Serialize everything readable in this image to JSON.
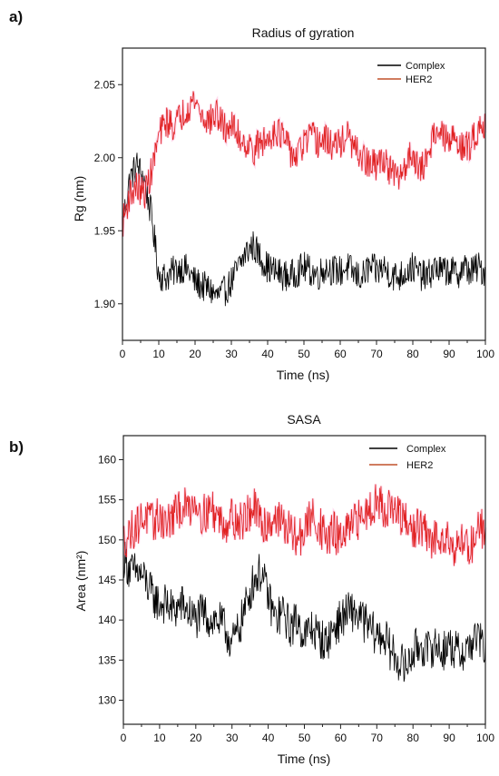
{
  "chart_data": [
    {
      "panel_label": "a)",
      "type": "line",
      "title": "Radius of gyration",
      "xlabel": "Time (ns)",
      "ylabel": "Rg (nm)",
      "xlim": [
        0,
        100
      ],
      "ylim": [
        1.875,
        2.075
      ],
      "xticks": [
        0,
        10,
        20,
        30,
        40,
        50,
        60,
        70,
        80,
        90,
        100
      ],
      "yticks": [
        1.9,
        1.95,
        2.0,
        2.05
      ],
      "ytick_labels": [
        "1.90",
        "1.95",
        "2.00",
        "2.05"
      ],
      "legend_position": "top-right",
      "grid": false,
      "series": [
        {
          "name": "Complex",
          "color": "#000000",
          "x": [
            0,
            2,
            4,
            6,
            8,
            10,
            12,
            14,
            16,
            18,
            20,
            22,
            24,
            26,
            28,
            30,
            32,
            34,
            36,
            38,
            40,
            42,
            44,
            46,
            48,
            50,
            52,
            54,
            56,
            58,
            60,
            62,
            64,
            66,
            68,
            70,
            72,
            74,
            76,
            78,
            80,
            82,
            84,
            86,
            88,
            90,
            92,
            94,
            96,
            98,
            100
          ],
          "y": [
            1.955,
            1.985,
            1.995,
            1.985,
            1.96,
            1.92,
            1.918,
            1.922,
            1.925,
            1.923,
            1.915,
            1.912,
            1.91,
            1.905,
            1.908,
            1.915,
            1.925,
            1.935,
            1.94,
            1.932,
            1.925,
            1.922,
            1.92,
            1.918,
            1.922,
            1.925,
            1.922,
            1.92,
            1.925,
            1.923,
            1.922,
            1.925,
            1.92,
            1.918,
            1.925,
            1.922,
            1.925,
            1.92,
            1.918,
            1.922,
            1.925,
            1.92,
            1.918,
            1.925,
            1.922,
            1.923,
            1.92,
            1.925,
            1.922,
            1.925,
            1.922
          ]
        },
        {
          "name": "HER2",
          "color": "#e02020",
          "x": [
            0,
            2,
            4,
            6,
            8,
            10,
            12,
            14,
            16,
            18,
            20,
            22,
            24,
            26,
            28,
            30,
            32,
            34,
            36,
            38,
            40,
            42,
            44,
            46,
            48,
            50,
            52,
            54,
            56,
            58,
            60,
            62,
            64,
            66,
            68,
            70,
            72,
            74,
            76,
            78,
            80,
            82,
            84,
            86,
            88,
            90,
            92,
            94,
            96,
            98,
            100
          ],
          "y": [
            1.955,
            1.975,
            1.98,
            1.975,
            1.99,
            2.015,
            2.025,
            2.022,
            2.028,
            2.035,
            2.04,
            2.028,
            2.025,
            2.03,
            2.02,
            2.022,
            2.015,
            2.01,
            2.005,
            2.01,
            2.012,
            2.02,
            2.015,
            2.005,
            2.0,
            2.01,
            2.015,
            2.01,
            2.012,
            2.008,
            2.01,
            2.015,
            2.005,
            2.0,
            1.995,
            1.995,
            2.0,
            1.99,
            1.985,
            1.995,
            2.005,
            1.99,
            2.0,
            2.02,
            2.015,
            2.01,
            2.015,
            2.005,
            2.01,
            2.02,
            2.025
          ]
        }
      ]
    },
    {
      "panel_label": "b)",
      "type": "line",
      "title": "SASA",
      "xlabel": "Time (ns)",
      "ylabel": "Area (nm²)",
      "xlim": [
        0,
        100
      ],
      "ylim": [
        127,
        163
      ],
      "xticks": [
        0,
        10,
        20,
        30,
        40,
        50,
        60,
        70,
        80,
        90,
        100
      ],
      "yticks": [
        130,
        135,
        140,
        145,
        150,
        155,
        160
      ],
      "ytick_labels": [
        "130",
        "135",
        "140",
        "145",
        "150",
        "155",
        "160"
      ],
      "legend_position": "top-right",
      "grid": false,
      "series": [
        {
          "name": "Complex",
          "color": "#000000",
          "x": [
            0,
            2,
            4,
            6,
            8,
            10,
            12,
            14,
            16,
            18,
            20,
            22,
            24,
            26,
            28,
            30,
            32,
            34,
            36,
            38,
            40,
            42,
            44,
            46,
            48,
            50,
            52,
            54,
            56,
            58,
            60,
            62,
            64,
            66,
            68,
            70,
            72,
            74,
            76,
            78,
            80,
            82,
            84,
            86,
            88,
            90,
            92,
            94,
            96,
            98,
            100
          ],
          "y": [
            148,
            146,
            146,
            145,
            143,
            142,
            142,
            141,
            142,
            141,
            140,
            141,
            140,
            140,
            139,
            137,
            139,
            142,
            145,
            146,
            143,
            140,
            141,
            139,
            140,
            138,
            139,
            138,
            137,
            139,
            140,
            141,
            141,
            140,
            139,
            138,
            138,
            136,
            135,
            134,
            136,
            137,
            136,
            137,
            136,
            137,
            136,
            136,
            137,
            138,
            136
          ]
        },
        {
          "name": "HER2",
          "color": "#e02020",
          "x": [
            0,
            2,
            4,
            6,
            8,
            10,
            12,
            14,
            16,
            18,
            20,
            22,
            24,
            26,
            28,
            30,
            32,
            34,
            36,
            38,
            40,
            42,
            44,
            46,
            48,
            50,
            52,
            54,
            56,
            58,
            60,
            62,
            64,
            66,
            68,
            70,
            72,
            74,
            76,
            78,
            80,
            82,
            84,
            86,
            88,
            90,
            92,
            94,
            96,
            98,
            100
          ],
          "y": [
            150,
            151,
            152,
            153,
            152,
            153,
            152,
            153,
            154,
            154,
            155,
            153,
            154,
            153,
            152,
            153,
            152,
            153,
            154,
            152,
            152,
            153,
            152,
            151,
            150,
            151,
            153,
            152,
            150,
            151,
            150,
            151,
            152,
            153,
            154,
            155,
            154,
            154,
            153,
            152,
            151,
            152,
            150,
            150,
            151,
            150,
            149,
            150,
            149,
            152,
            151
          ]
        }
      ]
    }
  ]
}
